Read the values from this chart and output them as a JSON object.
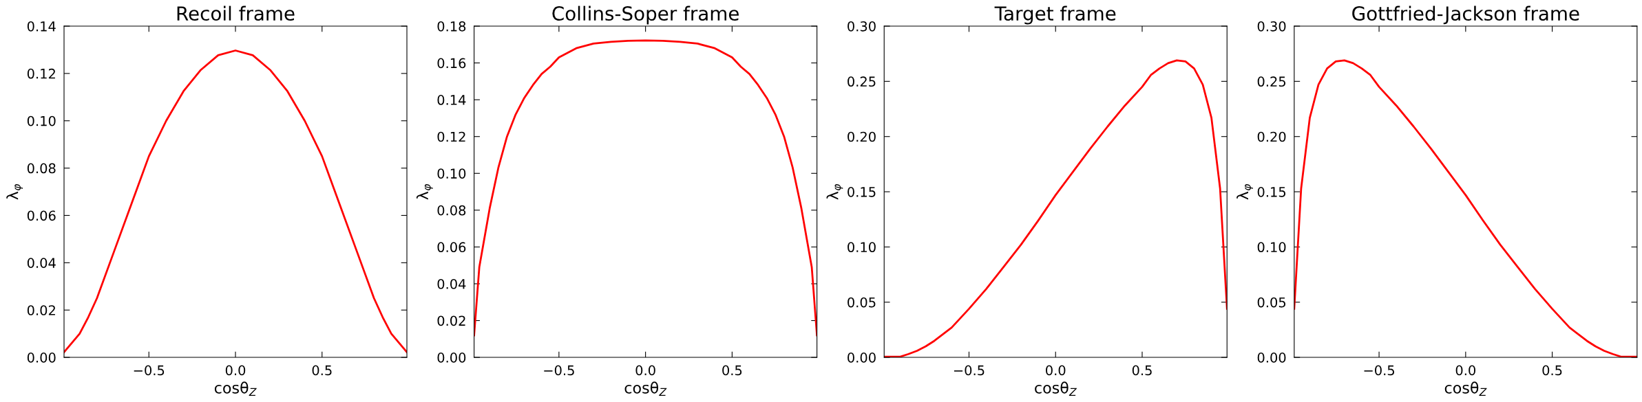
{
  "chart_data": [
    {
      "type": "line",
      "title": "Recoil frame",
      "xlabel": "cosθ$_{Z}$",
      "ylabel": "λ$_{φ}$",
      "xlim": [
        -0.99,
        0.99
      ],
      "ylim": [
        0,
        0.14
      ],
      "xticks": [
        {
          "value": -0.5,
          "label": "−0.5"
        },
        {
          "value": 0,
          "label": "0.0"
        },
        {
          "value": 0.5,
          "label": "0.5"
        }
      ],
      "yticks": [
        {
          "value": 0,
          "label": "0.00"
        },
        {
          "value": 0.02,
          "label": "0.02"
        },
        {
          "value": 0.04,
          "label": "0.04"
        },
        {
          "value": 0.06,
          "label": "0.06"
        },
        {
          "value": 0.08,
          "label": "0.08"
        },
        {
          "value": 0.1,
          "label": "0.10"
        },
        {
          "value": 0.12,
          "label": "0.12"
        },
        {
          "value": 0.14,
          "label": "0.14"
        }
      ],
      "series": [
        {
          "color": "#ff0000",
          "x": [
            -0.99,
            -0.9,
            -0.85,
            -0.8,
            -0.7,
            -0.6,
            -0.5,
            -0.4,
            -0.3,
            -0.2,
            -0.1,
            0,
            0.1,
            0.2,
            0.3,
            0.4,
            0.5,
            0.6,
            0.7,
            0.8,
            0.85,
            0.9,
            0.99
          ],
          "values": [
            0.0022,
            0.01,
            0.017,
            0.025,
            0.045,
            0.065,
            0.085,
            0.1,
            0.1125,
            0.1215,
            0.1277,
            0.1297,
            0.1277,
            0.1215,
            0.1125,
            0.1,
            0.085,
            0.065,
            0.045,
            0.025,
            0.017,
            0.01,
            0.0022
          ]
        }
      ]
    },
    {
      "type": "line",
      "title": "Collins-Soper frame",
      "xlabel": "cosθ$_{Z}$",
      "ylabel": "λ$_{φ}$",
      "xlim": [
        -0.99,
        0.99
      ],
      "ylim": [
        0,
        0.18
      ],
      "xticks": [
        {
          "value": -0.5,
          "label": "−0.5"
        },
        {
          "value": 0,
          "label": "0.0"
        },
        {
          "value": 0.5,
          "label": "0.5"
        }
      ],
      "yticks": [
        {
          "value": 0,
          "label": "0.00"
        },
        {
          "value": 0.02,
          "label": "0.02"
        },
        {
          "value": 0.04,
          "label": "0.04"
        },
        {
          "value": 0.06,
          "label": "0.06"
        },
        {
          "value": 0.08,
          "label": "0.08"
        },
        {
          "value": 0.1,
          "label": "0.10"
        },
        {
          "value": 0.12,
          "label": "0.12"
        },
        {
          "value": 0.14,
          "label": "0.14"
        },
        {
          "value": 0.16,
          "label": "0.16"
        },
        {
          "value": 0.18,
          "label": "0.18"
        }
      ],
      "series": [
        {
          "color": "#ff0000",
          "x": [
            -0.99,
            -0.96,
            -0.9,
            -0.85,
            -0.8,
            -0.75,
            -0.7,
            -0.65,
            -0.6,
            -0.55,
            -0.5,
            -0.4,
            -0.3,
            -0.2,
            -0.1,
            0,
            0.1,
            0.2,
            0.3,
            0.4,
            0.5,
            0.55,
            0.6,
            0.65,
            0.7,
            0.75,
            0.8,
            0.85,
            0.9,
            0.96,
            0.99
          ],
          "values": [
            0.012,
            0.049,
            0.081,
            0.103,
            0.12,
            0.132,
            0.141,
            0.148,
            0.154,
            0.158,
            0.163,
            0.168,
            0.1705,
            0.1715,
            0.172,
            0.1722,
            0.172,
            0.1715,
            0.1705,
            0.168,
            0.163,
            0.158,
            0.154,
            0.148,
            0.141,
            0.132,
            0.12,
            0.103,
            0.081,
            0.049,
            0.012
          ]
        }
      ]
    },
    {
      "type": "line",
      "title": "Target frame",
      "xlabel": "cosθ$_{Z}$",
      "ylabel": "λ$_{φ}$",
      "xlim": [
        -0.99,
        0.99
      ],
      "ylim": [
        0,
        0.3
      ],
      "xticks": [
        {
          "value": -0.5,
          "label": "−0.5"
        },
        {
          "value": 0,
          "label": "0.0"
        },
        {
          "value": 0.5,
          "label": "0.5"
        }
      ],
      "yticks": [
        {
          "value": 0,
          "label": "0.00"
        },
        {
          "value": 0.05,
          "label": "0.05"
        },
        {
          "value": 0.1,
          "label": "0.10"
        },
        {
          "value": 0.15,
          "label": "0.15"
        },
        {
          "value": 0.2,
          "label": "0.20"
        },
        {
          "value": 0.25,
          "label": "0.25"
        },
        {
          "value": 0.3,
          "label": "0.30"
        }
      ],
      "series": [
        {
          "color": "#ff0000",
          "x": [
            -0.99,
            -0.9,
            -0.85,
            -0.8,
            -0.75,
            -0.7,
            -0.6,
            -0.5,
            -0.4,
            -0.3,
            -0.2,
            -0.1,
            0,
            0.1,
            0.2,
            0.3,
            0.4,
            0.5,
            0.55,
            0.6,
            0.65,
            0.7,
            0.75,
            0.8,
            0.85,
            0.9,
            0.95,
            0.99
          ],
          "values": [
            0.0005,
            0.0005,
            0.003,
            0.006,
            0.01,
            0.015,
            0.027,
            0.044,
            0.062,
            0.082,
            0.102,
            0.124,
            0.147,
            0.168,
            0.189,
            0.209,
            0.228,
            0.245,
            0.2557,
            0.2617,
            0.2665,
            0.269,
            0.268,
            0.2617,
            0.247,
            0.217,
            0.153,
            0.044
          ]
        }
      ]
    },
    {
      "type": "line",
      "title": "Gottfried-Jackson frame",
      "xlabel": "cosθ$_{Z}$",
      "ylabel": "λ$_{φ}$",
      "xlim": [
        -0.99,
        0.99
      ],
      "ylim": [
        0,
        0.3
      ],
      "xticks": [
        {
          "value": -0.5,
          "label": "−0.5"
        },
        {
          "value": 0,
          "label": "0.0"
        },
        {
          "value": 0.5,
          "label": "0.5"
        }
      ],
      "yticks": [
        {
          "value": 0,
          "label": "0.00"
        },
        {
          "value": 0.05,
          "label": "0.05"
        },
        {
          "value": 0.1,
          "label": "0.10"
        },
        {
          "value": 0.15,
          "label": "0.15"
        },
        {
          "value": 0.2,
          "label": "0.20"
        },
        {
          "value": 0.25,
          "label": "0.25"
        },
        {
          "value": 0.3,
          "label": "0.30"
        }
      ],
      "series": [
        {
          "color": "#ff0000",
          "x": [
            -0.99,
            -0.95,
            -0.9,
            -0.85,
            -0.8,
            -0.75,
            -0.7,
            -0.65,
            -0.6,
            -0.55,
            -0.5,
            -0.4,
            -0.3,
            -0.2,
            -0.1,
            0,
            0.1,
            0.2,
            0.3,
            0.4,
            0.5,
            0.6,
            0.7,
            0.75,
            0.8,
            0.85,
            0.9,
            0.99
          ],
          "values": [
            0.044,
            0.153,
            0.217,
            0.247,
            0.2617,
            0.268,
            0.269,
            0.2665,
            0.2617,
            0.2557,
            0.245,
            0.228,
            0.209,
            0.189,
            0.168,
            0.147,
            0.124,
            0.102,
            0.082,
            0.062,
            0.044,
            0.027,
            0.015,
            0.01,
            0.006,
            0.003,
            0.0005,
            0.0005
          ]
        }
      ]
    }
  ]
}
